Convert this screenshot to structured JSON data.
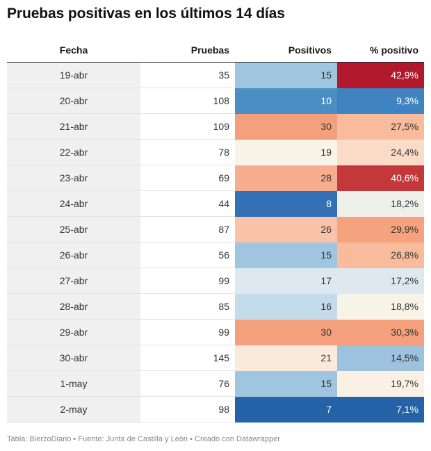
{
  "title": "Pruebas positivas en los últimos 14 días",
  "headers": [
    "Fecha",
    "Pruebas",
    "Positivos",
    "% positivo"
  ],
  "footer": "Tabla: BierzoDiario • Fuente: Junta de Castilla y León • Creado con Datawrapper",
  "colors": {
    "text_dark": "#333333",
    "text_light": "#ffffff",
    "fecha_bg": "#f0f0f0"
  },
  "chart_data": {
    "type": "table",
    "columns": [
      "Fecha",
      "Pruebas",
      "Positivos",
      "% positivo"
    ],
    "rows": [
      {
        "fecha": "19-abr",
        "pruebas": "35",
        "positivos": "15",
        "pct": "42,9%",
        "pos_color": "#9fc5e0",
        "pct_color": "#b1182b"
      },
      {
        "fecha": "20-abr",
        "pruebas": "108",
        "positivos": "10",
        "pct": "9,3%",
        "pos_color": "#4a8ec4",
        "pct_color": "#3f84c0"
      },
      {
        "fecha": "21-abr",
        "pruebas": "109",
        "positivos": "30",
        "pct": "27,5%",
        "pos_color": "#f4a07d",
        "pct_color": "#f8bc9c"
      },
      {
        "fecha": "22-abr",
        "pruebas": "78",
        "positivos": "19",
        "pct": "24,4%",
        "pos_color": "#f8f4e8",
        "pct_color": "#fbdcc8"
      },
      {
        "fecha": "23-abr",
        "pruebas": "69",
        "positivos": "28",
        "pct": "40,6%",
        "pos_color": "#f6ae8e",
        "pct_color": "#c4373b"
      },
      {
        "fecha": "24-abr",
        "pruebas": "44",
        "positivos": "8",
        "pct": "18,2%",
        "pos_color": "#3370b4",
        "pct_color": "#eef0ea"
      },
      {
        "fecha": "25-abr",
        "pruebas": "87",
        "positivos": "26",
        "pct": "29,9%",
        "pos_color": "#f9c3a9",
        "pct_color": "#f5a37f"
      },
      {
        "fecha": "26-abr",
        "pruebas": "56",
        "positivos": "15",
        "pct": "26,8%",
        "pos_color": "#9fc5e0",
        "pct_color": "#f8bc9c"
      },
      {
        "fecha": "27-abr",
        "pruebas": "99",
        "positivos": "17",
        "pct": "17,2%",
        "pos_color": "#dde9ee",
        "pct_color": "#dde9ee"
      },
      {
        "fecha": "28-abr",
        "pruebas": "85",
        "positivos": "16",
        "pct": "18,8%",
        "pos_color": "#c3dbeb",
        "pct_color": "#f7f3e7"
      },
      {
        "fecha": "29-abr",
        "pruebas": "99",
        "positivos": "30",
        "pct": "30,3%",
        "pos_color": "#f4a07d",
        "pct_color": "#f4a07d"
      },
      {
        "fecha": "30-abr",
        "pruebas": "145",
        "positivos": "21",
        "pct": "14,5%",
        "pos_color": "#faeadc",
        "pct_color": "#9cc2de"
      },
      {
        "fecha": "1-may",
        "pruebas": "76",
        "positivos": "15",
        "pct": "19,7%",
        "pos_color": "#9fc5e0",
        "pct_color": "#faf1e4"
      },
      {
        "fecha": "2-may",
        "pruebas": "98",
        "positivos": "7",
        "pct": "7,1%",
        "pos_color": "#2563a8",
        "pct_color": "#2563a8"
      }
    ]
  }
}
